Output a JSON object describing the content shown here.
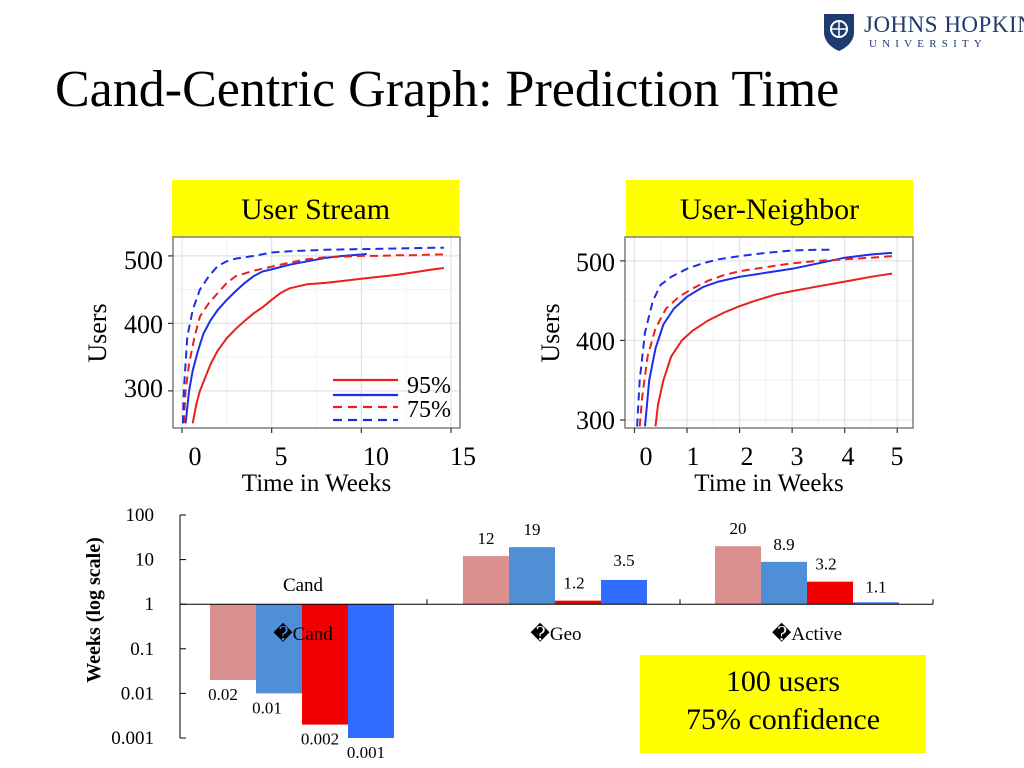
{
  "title": "Cand-Centric Graph: Prediction Time",
  "logo": {
    "line1": "JOHNS HOPKINS",
    "line2": "UNIVERSITY"
  },
  "note": {
    "line1": "100 users",
    "line2": "75% confidence"
  },
  "colors": {
    "red95": "#e8211c",
    "blue95": "#1c2ee8",
    "bar_red_light": "#d9908f",
    "bar_blue_light": "#4f8fd8",
    "bar_red": "#f00000",
    "bar_blue": "#2f6bff",
    "highlight": "#ffff00"
  },
  "chart_data": [
    {
      "type": "line",
      "title": "User Stream",
      "xlabel": "Time in Weeks",
      "ylabel": "Users",
      "xlim": [
        -0.5,
        15.5
      ],
      "ylim": [
        245,
        528
      ],
      "xticks": [
        "0",
        "5",
        "10",
        "15"
      ],
      "yticks": [
        "300",
        "400",
        "500"
      ],
      "grid": true,
      "legend": {
        "position": "bottom-right",
        "solid_label": "95%",
        "dashed_label": "75%"
      },
      "series": [
        {
          "color": "red",
          "style": "solid",
          "x": [
            0.6,
            0.8,
            1.0,
            1.3,
            1.6,
            2,
            2.5,
            3,
            3.5,
            4,
            4.5,
            5,
            5.5,
            6,
            7,
            8,
            9,
            10,
            11,
            12,
            13,
            14,
            14.6
          ],
          "y": [
            252,
            280,
            300,
            320,
            340,
            360,
            378,
            392,
            404,
            415,
            424,
            435,
            445,
            452,
            458,
            460,
            463,
            466,
            469,
            472,
            476,
            480,
            482
          ]
        },
        {
          "color": "blue",
          "style": "solid",
          "x": [
            0.2,
            0.4,
            0.6,
            0.9,
            1.2,
            1.6,
            2,
            2.5,
            3,
            3.5,
            4,
            4.5,
            5,
            6,
            7,
            8,
            9,
            10,
            10.3
          ],
          "y": [
            252,
            300,
            330,
            360,
            385,
            405,
            420,
            435,
            448,
            460,
            470,
            477,
            480,
            487,
            492,
            497,
            500,
            502,
            503
          ]
        },
        {
          "color": "red",
          "style": "dashed",
          "x": [
            0.1,
            0.2,
            0.4,
            0.7,
            1,
            1.5,
            2,
            2.5,
            3,
            4,
            5,
            6,
            7,
            8,
            9,
            10,
            11,
            12,
            13,
            14,
            14.6
          ],
          "y": [
            252,
            300,
            340,
            380,
            410,
            430,
            445,
            460,
            470,
            478,
            484,
            490,
            495,
            498,
            499,
            500,
            500,
            501,
            501,
            502,
            502
          ]
        },
        {
          "color": "blue",
          "style": "dashed",
          "x": [
            0.05,
            0.1,
            0.3,
            0.6,
            1,
            1.5,
            2,
            2.5,
            3,
            4,
            5,
            6,
            7,
            8,
            10,
            12,
            14,
            14.6
          ],
          "y": [
            252,
            300,
            380,
            420,
            450,
            470,
            485,
            492,
            496,
            500,
            505,
            507,
            508,
            509,
            510,
            511,
            512,
            512
          ]
        }
      ]
    },
    {
      "type": "line",
      "title": "User-Neighbor",
      "xlabel": "Time in Weeks",
      "ylabel": "Users",
      "xlim": [
        -0.18,
        5.3
      ],
      "ylim": [
        290,
        530
      ],
      "xticks": [
        "0",
        "1",
        "2",
        "3",
        "4",
        "5"
      ],
      "yticks": [
        "300",
        "400",
        "500"
      ],
      "grid": true,
      "series": [
        {
          "color": "red",
          "style": "solid",
          "x": [
            0.4,
            0.45,
            0.55,
            0.7,
            0.9,
            1.1,
            1.4,
            1.7,
            2,
            2.3,
            2.7,
            3,
            3.5,
            4,
            4.5,
            4.9
          ],
          "y": [
            292,
            320,
            350,
            380,
            400,
            412,
            425,
            435,
            443,
            450,
            458,
            462,
            468,
            474,
            480,
            484
          ]
        },
        {
          "color": "blue",
          "style": "solid",
          "x": [
            0.2,
            0.28,
            0.4,
            0.55,
            0.75,
            1,
            1.3,
            1.6,
            2,
            2.5,
            3,
            3.5,
            4,
            4.5,
            4.9
          ],
          "y": [
            292,
            350,
            390,
            420,
            440,
            455,
            467,
            474,
            480,
            485,
            490,
            497,
            504,
            508,
            510
          ]
        },
        {
          "color": "red",
          "style": "dashed",
          "x": [
            0.1,
            0.15,
            0.25,
            0.4,
            0.6,
            0.85,
            1.1,
            1.4,
            1.7,
            2,
            2.5,
            3,
            3.5,
            4,
            4.5,
            4.9
          ],
          "y": [
            292,
            330,
            380,
            415,
            440,
            455,
            465,
            475,
            482,
            487,
            492,
            497,
            500,
            502,
            504,
            506
          ]
        },
        {
          "color": "blue",
          "style": "dashed",
          "x": [
            0.05,
            0.1,
            0.2,
            0.35,
            0.5,
            0.7,
            1,
            1.3,
            1.6,
            2,
            2.5,
            3,
            3.5,
            3.8
          ],
          "y": [
            292,
            350,
            410,
            450,
            470,
            480,
            490,
            497,
            502,
            506,
            510,
            513,
            514,
            514
          ]
        }
      ]
    },
    {
      "type": "bar",
      "ylabel": "Weeks (log scale)",
      "log_scale": true,
      "ylim": [
        0.001,
        100
      ],
      "yticks": [
        "100",
        "10",
        "1",
        "0.1",
        "0.01",
        "0.001"
      ],
      "baseline": 1,
      "legend": "none",
      "categories": [
        "�Cand",
        "�Geo",
        "�Active"
      ],
      "group_label_above": "Cand",
      "groups": [
        {
          "values": [
            0.02,
            0.01,
            0.002,
            0.001
          ],
          "labels": [
            "0.02",
            "0.01",
            "0.002",
            "0.001"
          ]
        },
        {
          "values": [
            12,
            19,
            1.2,
            3.5
          ],
          "labels": [
            "12",
            "19",
            "1.2",
            "3.5"
          ]
        },
        {
          "values": [
            20,
            8.9,
            3.2,
            1.1
          ],
          "labels": [
            "20",
            "8.9",
            "3.2",
            "1.1"
          ]
        }
      ],
      "bar_colors": [
        "#d9908f",
        "#4f8fd8",
        "#f00000",
        "#2f6bff"
      ]
    }
  ]
}
